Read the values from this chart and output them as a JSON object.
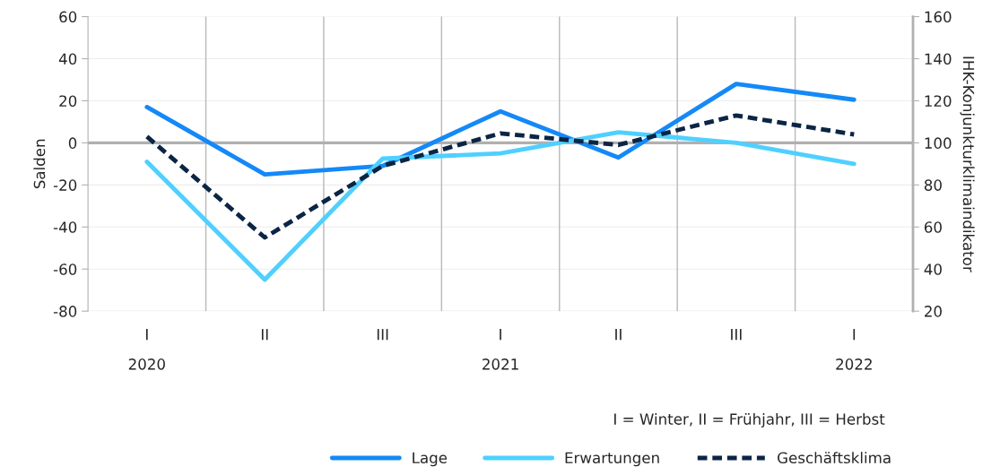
{
  "chart_data": {
    "type": "line",
    "categories": [
      "I",
      "II",
      "III",
      "I",
      "II",
      "III",
      "I"
    ],
    "series": [
      {
        "name": "Lage",
        "color": "#1489f7",
        "values": [
          17,
          -15,
          -11,
          15,
          -7,
          28,
          20.5
        ]
      },
      {
        "name": "Erwartungen",
        "color": "#4fd0ff",
        "values": [
          -9,
          -65,
          -7.5,
          -5,
          5,
          0,
          -10
        ]
      },
      {
        "name": "Geschäftsklima",
        "color": "#0b2545",
        "axis": "y2",
        "line_style": "dashed",
        "values": [
          103,
          55,
          89,
          104.5,
          99,
          113,
          104
        ]
      }
    ],
    "ylabel": "Salden",
    "y2label": "IHK-Konjunkturklimaindikator",
    "ylim": [
      -80,
      60
    ],
    "yticks": [
      -80,
      -60,
      -40,
      -20,
      0,
      20,
      40,
      60
    ],
    "y2lim": [
      20,
      160
    ],
    "y2ticks": [
      20,
      40,
      60,
      80,
      100,
      120,
      140,
      160
    ],
    "ref_lines": [
      {
        "axis": "y",
        "value": 0,
        "color": "#b0b0b0"
      }
    ],
    "annotations": [
      "2020",
      "2021",
      "2022",
      "I = Winter, II = Frühjahr, III = Herbst"
    ],
    "grid": true,
    "legend": "bottom",
    "line_style": "solid",
    "marker": "none"
  }
}
